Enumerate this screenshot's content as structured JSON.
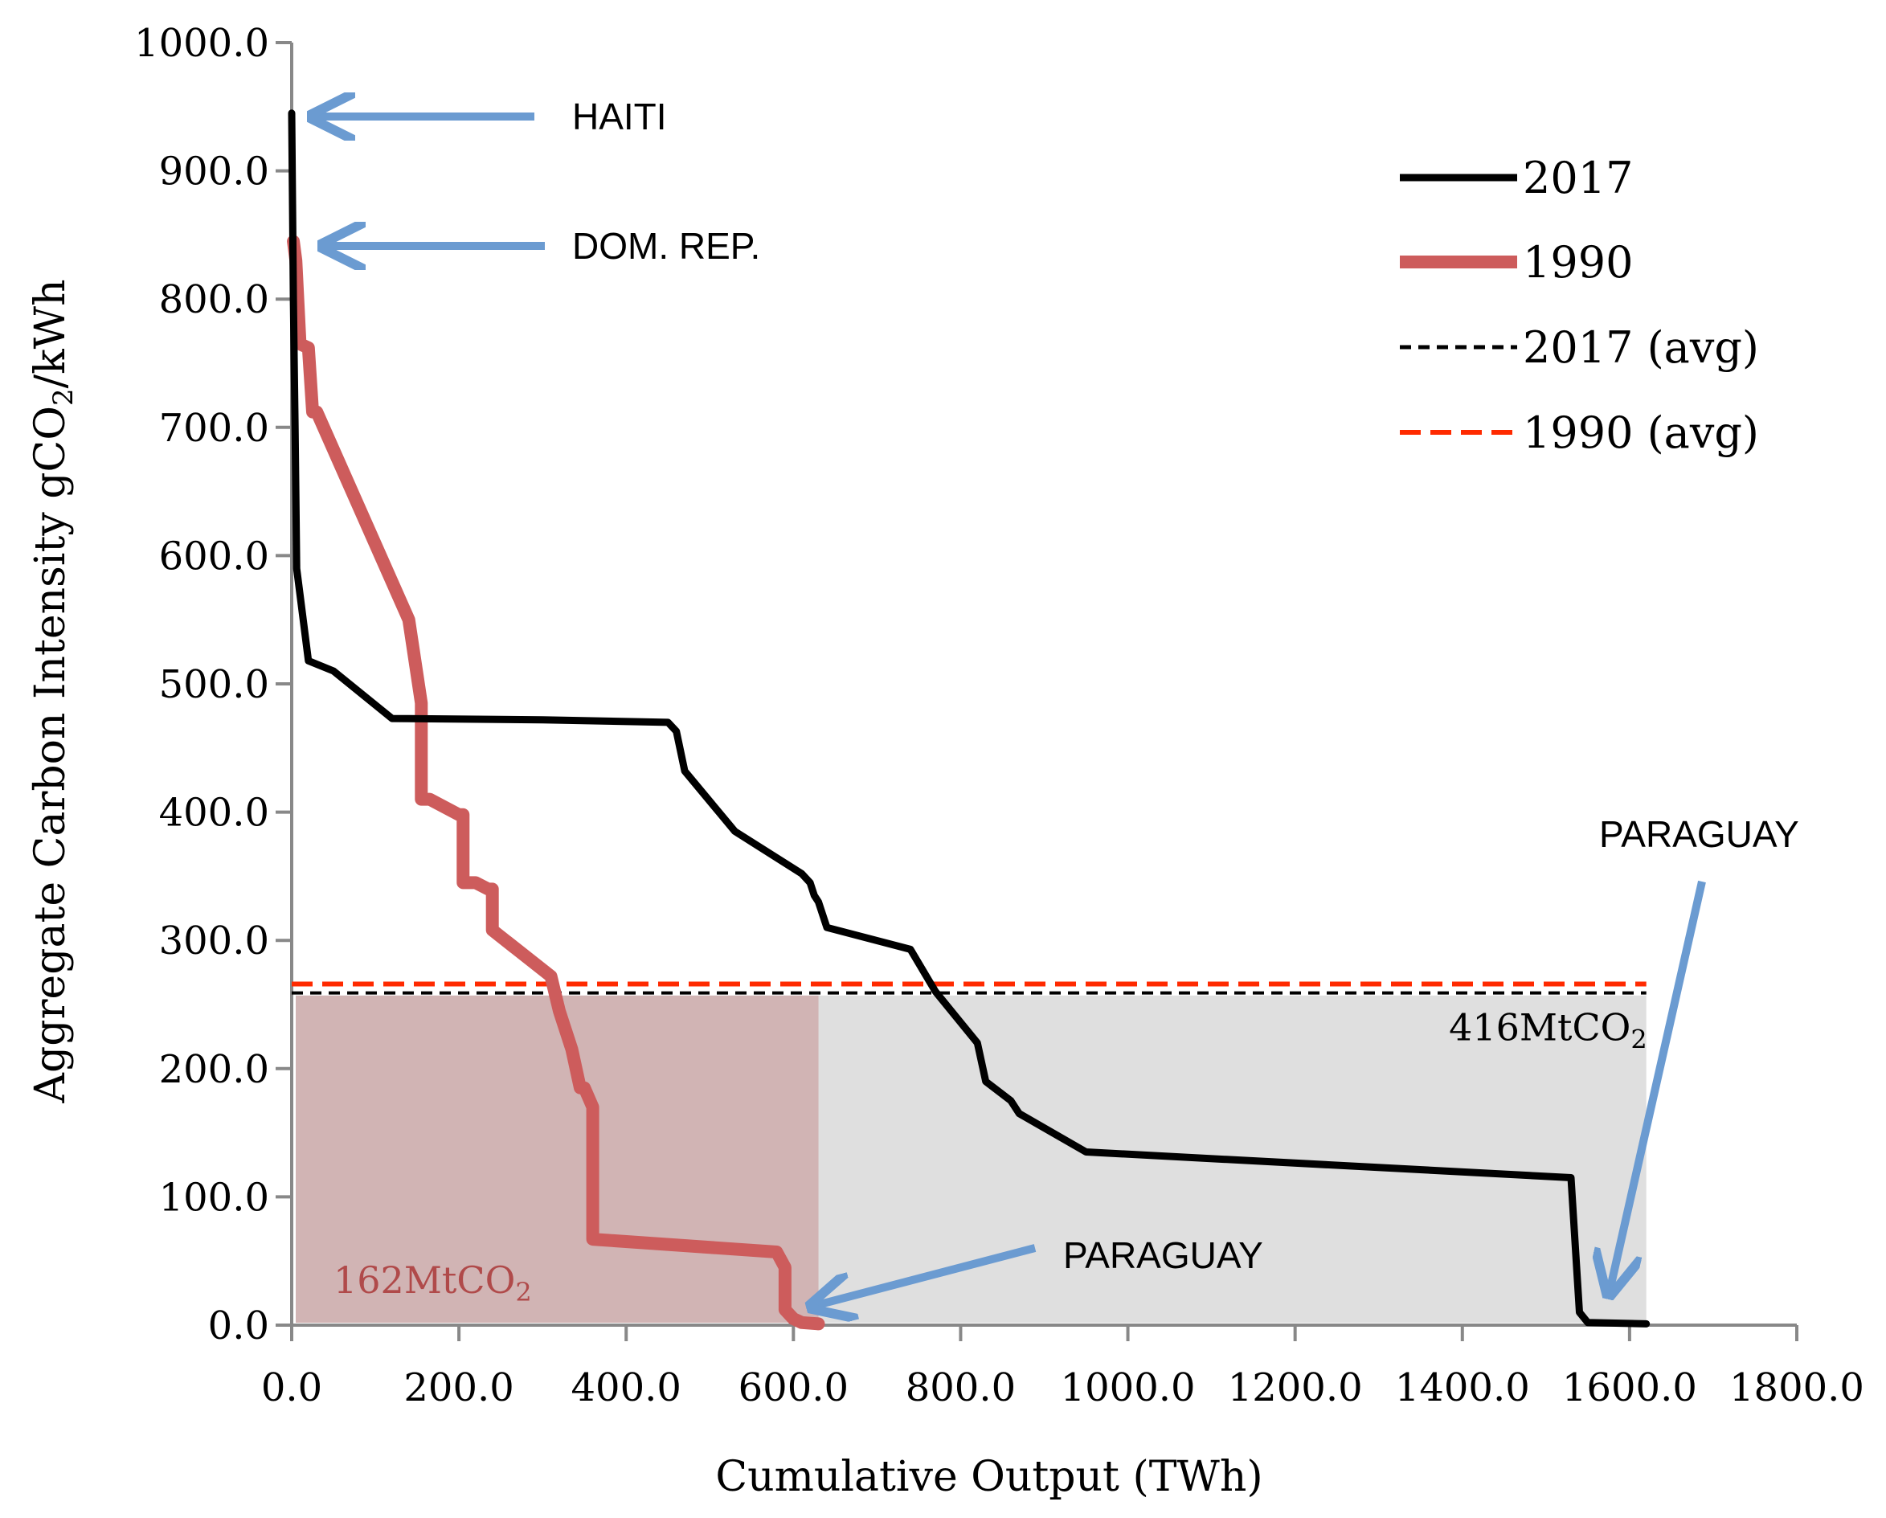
{
  "chart_data": {
    "type": "line",
    "title": "",
    "xlabel": "Cumulative Output (TWh)",
    "ylabel": "Aggregate Carbon Intensity gCO",
    "ylabel_sub": "2",
    "ylabel_suffix": "/kWh",
    "xlim": [
      0,
      1800
    ],
    "ylim": [
      0,
      1000
    ],
    "xticks": [
      0,
      200,
      400,
      600,
      800,
      1000,
      1200,
      1400,
      1600,
      1800
    ],
    "yticks": [
      0,
      100,
      200,
      300,
      400,
      500,
      600,
      700,
      800,
      900,
      1000
    ],
    "xtick_labels": [
      "0.0",
      "200.0",
      "400.0",
      "600.0",
      "800.0",
      "1000.0",
      "1200.0",
      "1400.0",
      "1600.0",
      "1800.0"
    ],
    "ytick_labels": [
      "0.0",
      "100.0",
      "200.0",
      "300.0",
      "400.0",
      "500.0",
      "600.0",
      "700.0",
      "800.0",
      "900.0",
      "1000.0"
    ],
    "series": [
      {
        "name": "2017",
        "color": "#000000",
        "x": [
          0,
          2,
          4,
          6,
          20,
          50,
          120,
          300,
          450,
          460,
          470,
          530,
          610,
          620,
          625,
          630,
          640,
          740,
          770,
          820,
          830,
          860,
          870,
          950,
          1530,
          1540,
          1550,
          1620
        ],
        "y": [
          945,
          800,
          700,
          590,
          518,
          510,
          473,
          472,
          470,
          463,
          432,
          385,
          352,
          345,
          335,
          330,
          310,
          293,
          260,
          220,
          190,
          175,
          165,
          135,
          115,
          10,
          2,
          1
        ]
      },
      {
        "name": "1990",
        "color": "#cd5c5c",
        "x": [
          2,
          5,
          10,
          20,
          25,
          30,
          140,
          155,
          155,
          165,
          200,
          205,
          205,
          220,
          235,
          240,
          240,
          310,
          320,
          335,
          345,
          350,
          360,
          360,
          580,
          590,
          590,
          600,
          610,
          630
        ],
        "y": [
          845,
          830,
          765,
          762,
          712,
          712,
          550,
          485,
          410,
          410,
          398,
          398,
          345,
          345,
          340,
          340,
          308,
          272,
          245,
          215,
          185,
          185,
          170,
          67,
          57,
          45,
          12,
          5,
          2,
          1
        ]
      }
    ],
    "avg_lines": [
      {
        "name": "2017 (avg)",
        "color": "#000000",
        "y": 259
      },
      {
        "name": "1990 (avg)",
        "color": "#ff2a00",
        "y": 266
      }
    ],
    "shaded_areas": [
      {
        "label": "416MtCO",
        "label_sub": "2",
        "color": "#cccccc",
        "x0": 0,
        "x1": 1620,
        "y": 257
      },
      {
        "label": "162MtCO",
        "label_sub": "2",
        "color": "#c49090",
        "x0": 0,
        "x1": 630,
        "y": 257
      }
    ],
    "legend": {
      "position": "top-right",
      "entries": [
        {
          "label": "2017",
          "style": "solid",
          "color": "#000000"
        },
        {
          "label": "1990",
          "style": "solid-thick",
          "color": "#cd5c5c"
        },
        {
          "label": "2017 (avg)",
          "style": "dashed",
          "color": "#000000"
        },
        {
          "label": "1990 (avg)",
          "style": "dashed",
          "color": "#ff2a00"
        }
      ]
    },
    "annotations": [
      {
        "text": "HAITI",
        "x": 0,
        "y": 945
      },
      {
        "text": "DOM. REP.",
        "x": 5,
        "y": 845
      },
      {
        "text": "PARAGUAY",
        "x": 630,
        "y": 15
      },
      {
        "text": "PARAGUAY",
        "x": 1570,
        "y": 20
      }
    ]
  }
}
